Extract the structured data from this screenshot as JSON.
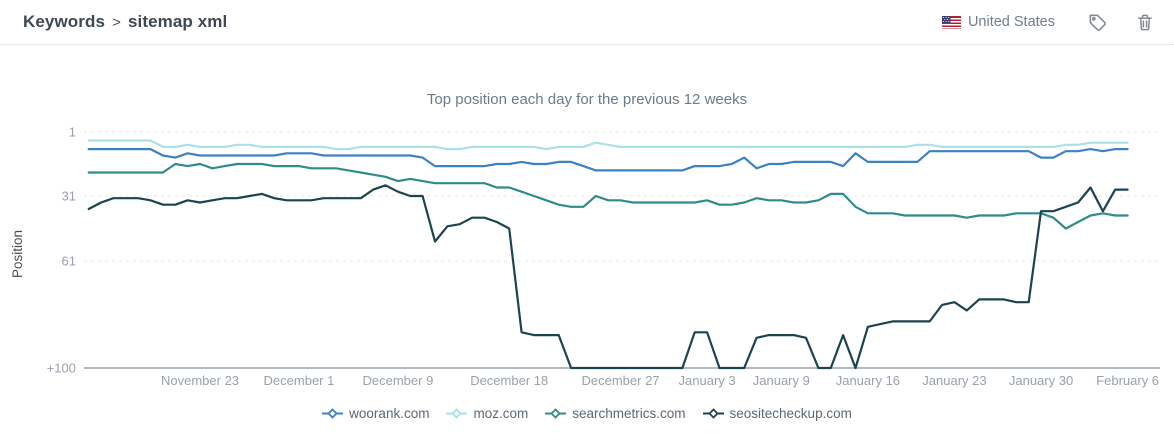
{
  "header": {
    "breadcrumb": {
      "section": "Keywords",
      "separator": ">",
      "page": "sitemap xml"
    },
    "country": {
      "name": "United States",
      "flag": "united-states"
    },
    "actions": {
      "tag": "tag",
      "delete": "trash"
    }
  },
  "chart_data": {
    "type": "line",
    "title": "Top position each day for the previous 12 weeks",
    "ylabel": "Position",
    "y_axis_inverted": true,
    "y_ticks": [
      {
        "label": "1",
        "pos": 1
      },
      {
        "label": "31",
        "pos": 31
      },
      {
        "label": "61",
        "pos": 61
      },
      {
        "label": "+100",
        "pos": 100
      }
    ],
    "y_note": "value 100 = '+100' axis line (not ranked in top 100)",
    "grid": "horizontal-dashed",
    "legend_position": "bottom",
    "days_total": 85,
    "x_ticks": [
      {
        "label": "November 23",
        "day": 9
      },
      {
        "label": "December 1",
        "day": 17
      },
      {
        "label": "December 9",
        "day": 25
      },
      {
        "label": "December 18",
        "day": 34
      },
      {
        "label": "December 27",
        "day": 43
      },
      {
        "label": "January 3",
        "day": 50
      },
      {
        "label": "January 9",
        "day": 56
      },
      {
        "label": "January 16",
        "day": 63
      },
      {
        "label": "January 23",
        "day": 70
      },
      {
        "label": "January 30",
        "day": 77
      },
      {
        "label": "February 6",
        "day": 84
      }
    ],
    "series": [
      {
        "name": "woorank.com",
        "color": "#3d80c4",
        "values": [
          9,
          9,
          9,
          9,
          9,
          9,
          12,
          13,
          11,
          12,
          12,
          12,
          12,
          12,
          12,
          12,
          11,
          11,
          11,
          12,
          12,
          12,
          12,
          12,
          12,
          12,
          12,
          13,
          17,
          17,
          17,
          17,
          17,
          16,
          16,
          15,
          16,
          16,
          15,
          15,
          17,
          19,
          19,
          19,
          19,
          19,
          19,
          19,
          19,
          17,
          17,
          17,
          16,
          13,
          18,
          16,
          16,
          15,
          15,
          15,
          15,
          17,
          11,
          15,
          15,
          15,
          15,
          15,
          10,
          10,
          10,
          10,
          10,
          10,
          10,
          10,
          10,
          13,
          13,
          10,
          10,
          9,
          10,
          9,
          9
        ]
      },
      {
        "name": "moz.com",
        "color": "#a9e1e7",
        "values": [
          5,
          5,
          5,
          5,
          5,
          5,
          8,
          8,
          7,
          8,
          8,
          8,
          7,
          7,
          8,
          8,
          8,
          8,
          8,
          8,
          9,
          9,
          8,
          8,
          8,
          8,
          8,
          8,
          8,
          9,
          9,
          8,
          8,
          8,
          8,
          8,
          8,
          9,
          8,
          8,
          8,
          6,
          7,
          8,
          8,
          8,
          8,
          8,
          8,
          8,
          8,
          8,
          8,
          8,
          8,
          8,
          8,
          8,
          8,
          8,
          8,
          8,
          8,
          8,
          8,
          8,
          8,
          7,
          7,
          8,
          8,
          8,
          8,
          8,
          8,
          8,
          8,
          8,
          8,
          7,
          7,
          6,
          6,
          6,
          6
        ]
      },
      {
        "name": "searchmetrics.com",
        "color": "#2f8c89",
        "values": [
          20,
          20,
          20,
          20,
          20,
          20,
          20,
          16,
          17,
          16,
          18,
          17,
          16,
          16,
          16,
          17,
          17,
          17,
          18,
          18,
          18,
          19,
          20,
          21,
          22,
          24,
          23,
          24,
          25,
          25,
          25,
          25,
          25,
          27,
          27,
          29,
          31,
          33,
          35,
          36,
          36,
          31,
          33,
          33,
          34,
          34,
          34,
          34,
          34,
          34,
          33,
          35,
          35,
          34,
          32,
          33,
          33,
          34,
          34,
          33,
          30,
          30,
          36,
          39,
          39,
          39,
          40,
          40,
          40,
          40,
          40,
          41,
          40,
          40,
          40,
          39,
          39,
          39,
          41,
          46,
          43,
          40,
          39,
          40,
          40
        ]
      },
      {
        "name": "seositecheckup.com",
        "color": "#1b4350",
        "values": [
          37,
          34,
          32,
          32,
          32,
          33,
          35,
          35,
          33,
          34,
          33,
          32,
          32,
          31,
          30,
          32,
          33,
          33,
          33,
          32,
          32,
          32,
          32,
          28,
          26,
          29,
          31,
          31,
          52,
          45,
          44,
          41,
          41,
          43,
          46,
          87,
          88,
          88,
          88,
          100,
          100,
          100,
          100,
          100,
          100,
          100,
          100,
          100,
          100,
          87,
          87,
          100,
          100,
          100,
          89,
          88,
          88,
          88,
          89,
          100,
          100,
          88,
          100,
          85,
          84,
          83,
          83,
          83,
          83,
          77,
          76,
          79,
          75,
          75,
          75,
          76,
          76,
          38,
          38,
          36,
          34,
          27,
          38,
          28,
          28
        ]
      }
    ]
  },
  "colors": {
    "accent_blue": "#3d80c4",
    "grid": "#e4e8ea",
    "axis": "#b3b8bd",
    "tick_text": "#9aa1a9",
    "title_text": "#6d7a87",
    "header_text": "#3d4853",
    "icon_gray": "#848a92"
  }
}
